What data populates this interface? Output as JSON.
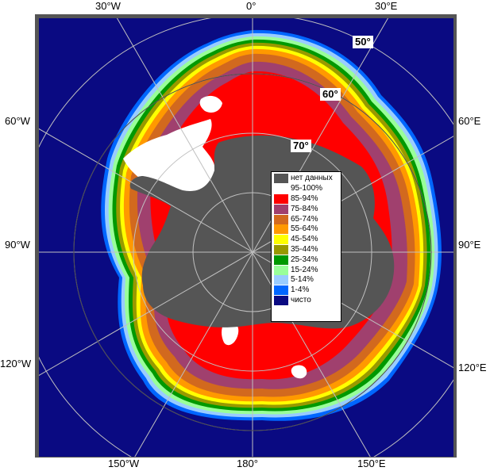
{
  "map": {
    "background_color": "#0a0a82",
    "land_color": "#555555",
    "frame_color": "#555555",
    "meridian_labels": [
      {
        "id": "lon-30w-top",
        "text": "30°W"
      },
      {
        "id": "lon-0-top",
        "text": "0°"
      },
      {
        "id": "lon-30e-top",
        "text": "30°E"
      },
      {
        "id": "lon-60w",
        "text": "60°W"
      },
      {
        "id": "lon-60e",
        "text": "60°E"
      },
      {
        "id": "lon-90w",
        "text": "90°W"
      },
      {
        "id": "lon-90e",
        "text": "90°E"
      },
      {
        "id": "lon-120w",
        "text": "120°W"
      },
      {
        "id": "lon-120e",
        "text": "120°E"
      },
      {
        "id": "lon-150w",
        "text": "150°W"
      },
      {
        "id": "lon-180",
        "text": "180°"
      },
      {
        "id": "lon-150e",
        "text": "150°E"
      }
    ],
    "latitude_labels": [
      {
        "id": "lat-50",
        "text": "50°"
      },
      {
        "id": "lat-60",
        "text": "60°"
      },
      {
        "id": "lat-70",
        "text": "70°"
      }
    ]
  },
  "legend": {
    "items": [
      {
        "label": "нет данных",
        "color": "#555555"
      },
      {
        "label": "95-100%",
        "color": "#ffffff"
      },
      {
        "label": "85-94%",
        "color": "#ff0000"
      },
      {
        "label": "75-84%",
        "color": "#a0406e"
      },
      {
        "label": "65-74%",
        "color": "#d2691e"
      },
      {
        "label": "55-64%",
        "color": "#ff9900"
      },
      {
        "label": "45-54%",
        "color": "#ffff00"
      },
      {
        "label": "35-44%",
        "color": "#999900"
      },
      {
        "label": "25-34%",
        "color": "#009900"
      },
      {
        "label": "15-24%",
        "color": "#99ff99"
      },
      {
        "label": "5-14%",
        "color": "#99ccff"
      },
      {
        "label": "1-4%",
        "color": "#0066ff"
      },
      {
        "label": "чисто",
        "color": "#0a0a82"
      }
    ]
  }
}
